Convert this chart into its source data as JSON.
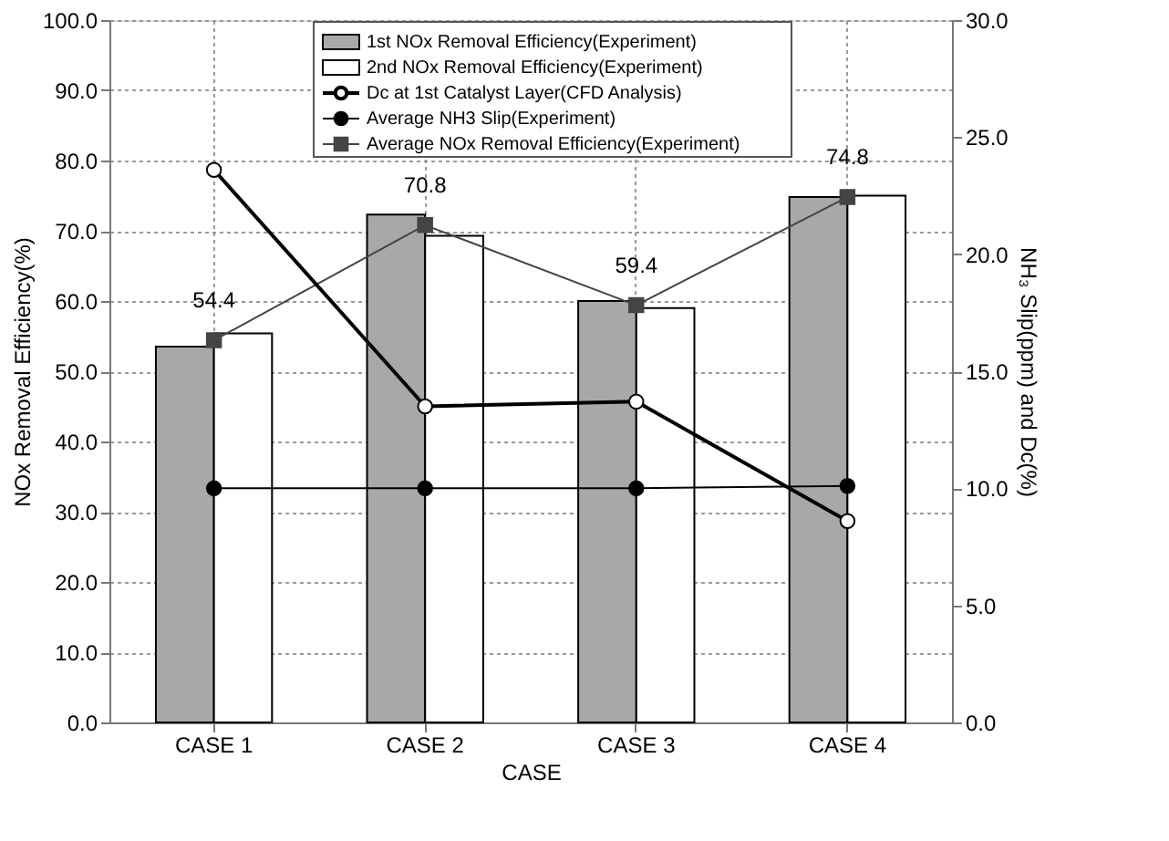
{
  "chart_data": {
    "type": "bar",
    "categories": [
      "CASE 1",
      "CASE 2",
      "CASE 3",
      "CASE 4"
    ],
    "xlabel": "CASE",
    "ylabel": "NOx Removal Efficiency(%)",
    "y2label": "NH₃ Slip(ppm) and Dc(%)",
    "ylim": [
      0,
      100
    ],
    "yticks": [
      {
        "value": 0,
        "label": "0.0"
      },
      {
        "value": 10,
        "label": "10.0"
      },
      {
        "value": 20,
        "label": "20.0"
      },
      {
        "value": 30,
        "label": "30.0"
      },
      {
        "value": 40,
        "label": "40.0"
      },
      {
        "value": 50,
        "label": "50.0"
      },
      {
        "value": 60,
        "label": "60.0"
      },
      {
        "value": 70,
        "label": "70.0"
      },
      {
        "value": 80,
        "label": "80.0"
      },
      {
        "value": 90,
        "label": "90.0"
      },
      {
        "value": 100,
        "label": "100.0"
      }
    ],
    "y2lim": [
      0,
      30
    ],
    "y2ticks": [
      {
        "value": 0,
        "label": "0.0"
      },
      {
        "value": 5,
        "label": "5.0"
      },
      {
        "value": 10,
        "label": "10.0"
      },
      {
        "value": 15,
        "label": "15.0"
      },
      {
        "value": 20,
        "label": "20.0"
      },
      {
        "value": 25,
        "label": "25.0"
      },
      {
        "value": 30,
        "label": "30.0"
      }
    ],
    "grid": true,
    "legend": "top",
    "series": [
      {
        "name": "1st NOx Removal Efficiency(Experiment)",
        "color": "#a8a8a8",
        "values": [
          53.5,
          72.3,
          60.0,
          74.8
        ]
      },
      {
        "name": "2nd NOx Removal Efficiency(Experiment)",
        "color": "#ffffff",
        "values": [
          55.4,
          69.3,
          59.0,
          75.0
        ]
      },
      {
        "name": "Dc at 1st Catalyst Layer(CFD Analysis)",
        "type": "line",
        "axis": "y2",
        "color": "#000000",
        "marker": "circle",
        "values": [
          23.6,
          13.5,
          13.7,
          8.6
        ]
      },
      {
        "name": "Average NH3 Slip(Experiment)",
        "type": "line",
        "axis": "y2",
        "color": "#000000",
        "marker": "circle",
        "values": [
          10.0,
          10.0,
          10.0,
          10.1
        ]
      },
      {
        "name": "Average NOx Removal Efficiency(Experiment)",
        "type": "line",
        "color": "#444444",
        "marker": "square",
        "values": [
          54.4,
          70.8,
          59.4,
          74.8
        ],
        "value_labels": [
          "54.4",
          "70.8",
          "59.4",
          "74.8"
        ]
      }
    ]
  }
}
